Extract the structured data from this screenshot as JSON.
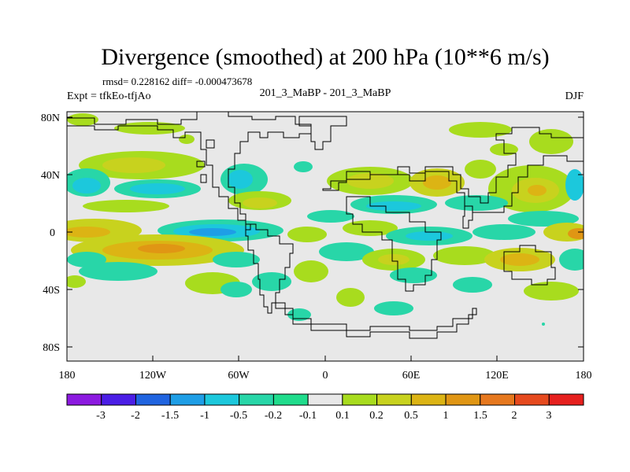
{
  "header": {
    "title": "Divergence (smoothed) at 200 hPa (10**6 m/s)",
    "stats": "rmsd= 0.228162 diff= -0.000473678",
    "experiment": "Expt = tfkEo-tfjAo",
    "comparison": "201_3_MaBP - 201_3_MaBP",
    "season": "DJF"
  },
  "axes": {
    "lat_ticks": [
      {
        "value": 80,
        "label": "80N"
      },
      {
        "value": 40,
        "label": "40N"
      },
      {
        "value": 0,
        "label": "0"
      },
      {
        "value": -40,
        "label": "40S"
      },
      {
        "value": -80,
        "label": "80S"
      }
    ],
    "lon_ticks": [
      {
        "value": -180,
        "label": "180"
      },
      {
        "value": -120,
        "label": "120W"
      },
      {
        "value": -60,
        "label": "60W"
      },
      {
        "value": 0,
        "label": "0"
      },
      {
        "value": 60,
        "label": "60E"
      },
      {
        "value": 120,
        "label": "120E"
      },
      {
        "value": 180,
        "label": "180"
      }
    ],
    "lon_range": [
      -180,
      180
    ],
    "lat_range": [
      -90,
      90
    ]
  },
  "colorbar": {
    "colors": [
      "#8c1ae0",
      "#4b1ee6",
      "#2064e0",
      "#1e9ee6",
      "#1cc8dc",
      "#28d6a8",
      "#20dc8c",
      "#e8e8e8",
      "#a8dc1e",
      "#c8d21e",
      "#dcb414",
      "#e09614",
      "#e6781e",
      "#e64a1e",
      "#e6201e"
    ],
    "labels": [
      "-3",
      "-2",
      "-1.5",
      "-1",
      "-0.5",
      "-0.2",
      "-0.1",
      "0.1",
      "0.2",
      "0.5",
      "1",
      "1.5",
      "2",
      "3"
    ]
  },
  "colors": {
    "background_field": "#e8e8e8",
    "coastline": "#000000",
    "strong_neg": "#1e9ee6",
    "mid_neg": "#1cc8dc",
    "weak_neg": "#28d6a8",
    "weak_pos": "#a8dc1e",
    "mid_pos": "#c8d21e",
    "strong_pos": "#dcb414",
    "stronger_pos": "#e09614"
  }
}
